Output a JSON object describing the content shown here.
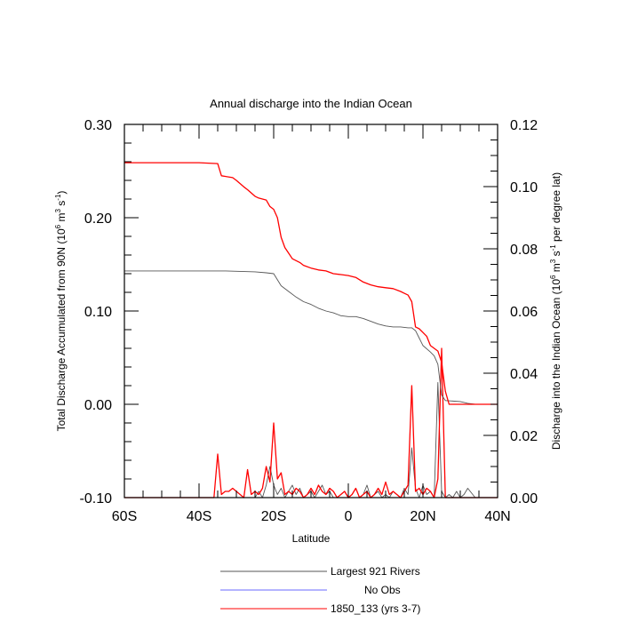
{
  "chart_data": {
    "type": "line",
    "title": "Annual discharge into the Indian Ocean",
    "xlabel": "Latitude",
    "ylabel_left": {
      "pre": "Total Discharge Accumulated from 90N (10",
      "exp1": "6",
      "mid": " m",
      "exp2": "3",
      "mid2": " s",
      "exp3": "-1",
      "post": ")"
    },
    "ylabel_right": {
      "pre": "Discharge into the Indian Ocean (10",
      "exp1": "6",
      "mid": " m",
      "exp2": "3",
      "mid2": " s",
      "exp3": "-1",
      "post": " per degree lat)"
    },
    "xlim": [
      -60,
      40
    ],
    "ylim_left": [
      -0.1,
      0.3
    ],
    "ylim_right": [
      0.0,
      0.12
    ],
    "x_ticks": [
      {
        "value": -60,
        "label": "60S"
      },
      {
        "value": -40,
        "label": "40S"
      },
      {
        "value": -20,
        "label": "20S"
      },
      {
        "value": 0,
        "label": "0"
      },
      {
        "value": 20,
        "label": "20N"
      },
      {
        "value": 40,
        "label": "40N"
      }
    ],
    "y_ticks_left": [
      {
        "value": -0.1,
        "label": "-0.10"
      },
      {
        "value": 0.0,
        "label": "0.00"
      },
      {
        "value": 0.1,
        "label": "0.10"
      },
      {
        "value": 0.2,
        "label": "0.20"
      },
      {
        "value": 0.3,
        "label": "0.30"
      }
    ],
    "y_ticks_right": [
      {
        "value": 0.0,
        "label": "0.00"
      },
      {
        "value": 0.02,
        "label": "0.02"
      },
      {
        "value": 0.04,
        "label": "0.04"
      },
      {
        "value": 0.06,
        "label": "0.06"
      },
      {
        "value": 0.08,
        "label": "0.08"
      },
      {
        "value": 0.1,
        "label": "0.10"
      },
      {
        "value": 0.12,
        "label": "0.12"
      }
    ],
    "series": [
      {
        "name": "Largest 921 Rivers",
        "color": "#555555",
        "accumulated": {
          "axis": "left",
          "x": [
            -60,
            -40,
            -33,
            -25,
            -22,
            -20,
            -18,
            -16,
            -14,
            -12,
            -10,
            -8,
            -6,
            -4,
            -2,
            0,
            2,
            4,
            6,
            8,
            10,
            12,
            14,
            16,
            17,
            18,
            19,
            20,
            22,
            23,
            24,
            25,
            26,
            30,
            32,
            34,
            40
          ],
          "y": [
            0.143,
            0.143,
            0.143,
            0.142,
            0.141,
            0.14,
            0.127,
            0.121,
            0.115,
            0.11,
            0.107,
            0.103,
            0.1,
            0.098,
            0.095,
            0.094,
            0.094,
            0.092,
            0.089,
            0.086,
            0.084,
            0.083,
            0.083,
            0.082,
            0.082,
            0.079,
            0.071,
            0.063,
            0.056,
            0.052,
            0.043,
            0.01,
            0.004,
            0.003,
            0.001,
            0.0,
            0.0
          ]
        },
        "per_degree": {
          "axis": "right",
          "x": [
            -60,
            -25,
            -24,
            -23,
            -22,
            -21,
            -20,
            -19,
            -18,
            -17,
            -16,
            -15,
            -14,
            -13,
            -12,
            -11,
            -10,
            -9,
            -8,
            -7,
            -6,
            -5,
            -4,
            -3,
            -2,
            -1,
            0,
            1,
            2,
            3,
            4,
            5,
            6,
            7,
            8,
            9,
            10,
            11,
            12,
            13,
            14,
            15,
            16,
            17,
            18,
            19,
            20,
            21,
            22,
            23,
            24,
            25,
            26,
            27,
            28,
            29,
            30,
            31,
            32,
            34,
            40
          ],
          "y": [
            0.0,
            0.0,
            0.002,
            0.0,
            0.004,
            0.01,
            0.004,
            0.001,
            0.003,
            0.0,
            0.002,
            0.004,
            0.001,
            0.003,
            0.0,
            0.001,
            0.002,
            0.0,
            0.002,
            0.004,
            0.001,
            0.002,
            0.0,
            0.0,
            0.001,
            0.002,
            0.0,
            0.001,
            0.003,
            0.0,
            0.001,
            0.004,
            0.0,
            0.001,
            0.002,
            0.0,
            0.001,
            0.0,
            0.002,
            0.001,
            0.0,
            0.003,
            0.001,
            0.016,
            0.003,
            0.0,
            0.004,
            0.001,
            0.002,
            0.0,
            0.037,
            0.002,
            0.0,
            0.001,
            0.0,
            0.002,
            0.0,
            0.001,
            0.003,
            0.0,
            0.0
          ]
        }
      },
      {
        "name": "No Obs",
        "color": "#6a6aff",
        "accumulated": {
          "axis": "left",
          "x": [],
          "y": []
        },
        "per_degree": {
          "axis": "right",
          "x": [],
          "y": []
        }
      },
      {
        "name": "1850_133 (yrs 3-7)",
        "color": "#ff0000",
        "accumulated": {
          "axis": "left",
          "x": [
            -60,
            -40,
            -35,
            -34,
            -31,
            -30,
            -28,
            -27,
            -25,
            -24,
            -22,
            -21,
            -20,
            -19,
            -18,
            -17,
            -16,
            -15,
            -13,
            -12,
            -10,
            -8,
            -6,
            -4,
            -2,
            0,
            2,
            4,
            6,
            8,
            10,
            12,
            14,
            15,
            16,
            17,
            18,
            19,
            20,
            21,
            22,
            23,
            24,
            25,
            26,
            27,
            28,
            30,
            40
          ],
          "y": [
            0.259,
            0.259,
            0.258,
            0.245,
            0.243,
            0.24,
            0.233,
            0.23,
            0.223,
            0.221,
            0.219,
            0.212,
            0.209,
            0.2,
            0.179,
            0.168,
            0.162,
            0.156,
            0.152,
            0.149,
            0.146,
            0.144,
            0.143,
            0.14,
            0.139,
            0.138,
            0.136,
            0.131,
            0.128,
            0.126,
            0.125,
            0.124,
            0.121,
            0.119,
            0.117,
            0.11,
            0.083,
            0.081,
            0.077,
            0.073,
            0.063,
            0.06,
            0.057,
            0.045,
            0.014,
            0.0,
            0.0,
            0.0,
            0.0
          ]
        },
        "per_degree": {
          "axis": "right",
          "x": [
            -60,
            -36,
            -35,
            -34,
            -33,
            -32,
            -31,
            -30,
            -29,
            -28,
            -27,
            -26,
            -25,
            -24,
            -23,
            -22,
            -21,
            -20,
            -19,
            -18,
            -17,
            -16,
            -15,
            -14,
            -13,
            -12,
            -11,
            -10,
            -9,
            -8,
            -7,
            -6,
            -5,
            -4,
            -3,
            -2,
            -1,
            0,
            1,
            2,
            3,
            4,
            5,
            6,
            7,
            8,
            9,
            10,
            11,
            12,
            13,
            14,
            15,
            16,
            17,
            18,
            19,
            20,
            21,
            22,
            23,
            24,
            25,
            26,
            27,
            28,
            29,
            30,
            40
          ],
          "y": [
            0.0,
            0.0,
            0.014,
            0.001,
            0.002,
            0.002,
            0.003,
            0.002,
            0.001,
            0.0,
            0.009,
            0.001,
            0.002,
            0.001,
            0.003,
            0.01,
            0.005,
            0.024,
            0.006,
            0.008,
            0.001,
            0.002,
            0.001,
            0.003,
            0.002,
            0.0,
            0.001,
            0.003,
            0.001,
            0.004,
            0.002,
            0.001,
            0.003,
            0.002,
            0.0,
            0.001,
            0.002,
            0.0,
            0.001,
            0.003,
            0.0,
            0.001,
            0.002,
            0.0,
            0.001,
            0.003,
            0.001,
            0.005,
            0.001,
            0.002,
            0.001,
            0.0,
            0.002,
            0.004,
            0.036,
            0.002,
            0.003,
            0.001,
            0.003,
            0.002,
            0.0,
            0.006,
            0.048,
            0.0,
            0.0,
            0.0,
            0.0,
            0.0,
            0.0
          ]
        }
      }
    ]
  }
}
